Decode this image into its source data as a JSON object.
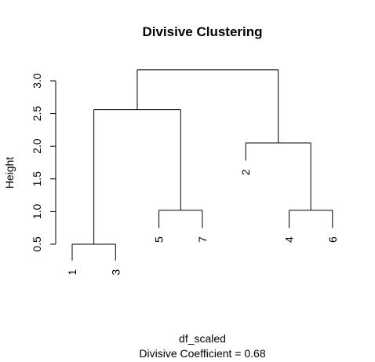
{
  "chart_data": {
    "type": "dendrogram",
    "title": "Divisive Clustering",
    "xlabel": "df_scaled",
    "sublabel": "Divisive Coefficient =  0.68",
    "ylabel": "Height",
    "yticks": [
      0.5,
      1.0,
      1.5,
      2.0,
      2.5,
      3.0
    ],
    "ytick_labels": [
      "0.5",
      "1.0",
      "1.5",
      "2.0",
      "2.5",
      "3.0"
    ],
    "ylim": [
      0.0,
      3.3
    ],
    "leaves": [
      {
        "label": "1",
        "hang": 0.25
      },
      {
        "label": "3",
        "hang": 0.25
      },
      {
        "label": "5",
        "hang": 0.75
      },
      {
        "label": "7",
        "hang": 0.75
      },
      {
        "label": "2",
        "hang": 1.78
      },
      {
        "label": "4",
        "hang": 0.75
      },
      {
        "label": "6",
        "hang": 0.75
      }
    ],
    "merges": [
      {
        "left": "1",
        "right": "3",
        "height": 0.5
      },
      {
        "left": "5",
        "right": "7",
        "height": 1.02
      },
      {
        "left": "4",
        "right": "6",
        "height": 1.02
      },
      {
        "left": "{1,3}",
        "right": "{5,7}",
        "height": 2.56
      },
      {
        "left": "2",
        "right": "{4,6}",
        "height": 2.05
      },
      {
        "left": "{1,3,5,7}",
        "right": "{2,4,6}",
        "height": 3.17
      }
    ]
  }
}
